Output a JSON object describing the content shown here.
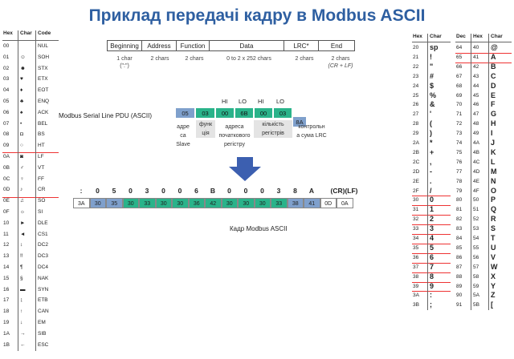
{
  "title": "Приклад передачі кадру в Modbus ASCII",
  "frame_structure": {
    "headers": [
      "Beginning",
      "Address",
      "Function",
      "Data",
      "LRC*",
      "End"
    ],
    "sizes": [
      {
        "l1": "1 char",
        "l2": "(\":\")"
      },
      {
        "l1": "2 chars",
        "l2": ""
      },
      {
        "l1": "2 chars",
        "l2": ""
      },
      {
        "l1": "0 to 2 x 252 chars",
        "l2": ""
      },
      {
        "l1": "2 chars",
        "l2": ""
      },
      {
        "l1": "2 chars",
        "l2": "(CR + LF)"
      }
    ]
  },
  "pdu": {
    "label": "Modbus Serial Line PDU (ASCII)",
    "bytes": [
      "05",
      "03",
      "00",
      "6B",
      "00",
      "03",
      "8A"
    ],
    "hilo": [
      "HI",
      "LO",
      "HI",
      "LO"
    ],
    "descriptions": [
      "адре\nса\nSlave",
      "функ\nція",
      "адреса\nпочаткового\nрегістру",
      "кількість\nрегістрів",
      "контрольн\nа сума LRC"
    ]
  },
  "ascii_frame": {
    "chars": [
      ":",
      "0",
      "5",
      "0",
      "3",
      "0",
      "0",
      "6",
      "B",
      "0",
      "0",
      "0",
      "3",
      "8",
      "A",
      "(CR)(LF)"
    ],
    "hex": [
      "3A",
      "30",
      "35",
      "30",
      "33",
      "30",
      "30",
      "36",
      "42",
      "30",
      "30",
      "30",
      "33",
      "38",
      "41",
      "0D",
      "0A"
    ],
    "caption": "Кадр Modbus ASCII"
  },
  "table_left": {
    "headers": [
      "Hex",
      "Char",
      "Code"
    ],
    "rows": [
      [
        "00",
        "",
        "NUL"
      ],
      [
        "01",
        "☺",
        "SOH"
      ],
      [
        "02",
        "☻",
        "STX"
      ],
      [
        "03",
        "♥",
        "ETX"
      ],
      [
        "04",
        "♦",
        "EOT"
      ],
      [
        "05",
        "♣",
        "ENQ"
      ],
      [
        "06",
        "♠",
        "ACK"
      ],
      [
        "07",
        "•",
        "BEL"
      ],
      [
        "08",
        "◘",
        "BS"
      ],
      [
        "09",
        "○",
        "HT"
      ],
      [
        "0A",
        "◙",
        "LF"
      ],
      [
        "0B",
        "♂",
        "VT"
      ],
      [
        "0C",
        "♀",
        "FF"
      ],
      [
        "0D",
        "♪",
        "CR"
      ],
      [
        "0E",
        "♫",
        "SO"
      ],
      [
        "0F",
        "☼",
        "SI"
      ],
      [
        "10",
        "►",
        "DLE"
      ],
      [
        "11",
        "◄",
        "CS1"
      ],
      [
        "12",
        "↕",
        "DC2"
      ],
      [
        "13",
        "‼",
        "DC3"
      ],
      [
        "14",
        "¶",
        "DC4"
      ],
      [
        "15",
        "§",
        "NAK"
      ],
      [
        "16",
        "▬",
        "SYN"
      ],
      [
        "17",
        "↨",
        "ETB"
      ],
      [
        "18",
        "↑",
        "CAN"
      ],
      [
        "19",
        "↓",
        "EM"
      ],
      [
        "1A",
        "→",
        "SIB"
      ],
      [
        "1B",
        "←",
        "ESC"
      ]
    ]
  },
  "table_mid": {
    "headers": [
      "Hex",
      "Char"
    ],
    "rows": [
      [
        "20",
        "sp"
      ],
      [
        "21",
        "!"
      ],
      [
        "22",
        "\""
      ],
      [
        "23",
        "#"
      ],
      [
        "24",
        "$"
      ],
      [
        "25",
        "%"
      ],
      [
        "26",
        "&"
      ],
      [
        "27",
        "'"
      ],
      [
        "28",
        "("
      ],
      [
        "29",
        ")"
      ],
      [
        "2A",
        "*"
      ],
      [
        "2B",
        "+"
      ],
      [
        "2C",
        ","
      ],
      [
        "2D",
        "-"
      ],
      [
        "2E",
        "."
      ],
      [
        "2F",
        "/"
      ],
      [
        "30",
        "0"
      ],
      [
        "31",
        "1"
      ],
      [
        "32",
        "2"
      ],
      [
        "33",
        "3"
      ],
      [
        "34",
        "4"
      ],
      [
        "35",
        "5"
      ],
      [
        "36",
        "6"
      ],
      [
        "37",
        "7"
      ],
      [
        "38",
        "8"
      ],
      [
        "39",
        "9"
      ],
      [
        "3A",
        ":"
      ],
      [
        "3B",
        ";"
      ]
    ]
  },
  "table_right": {
    "headers": [
      "Dec",
      "Hex",
      "Char"
    ],
    "rows": [
      [
        "64",
        "40",
        "@"
      ],
      [
        "65",
        "41",
        "A"
      ],
      [
        "66",
        "42",
        "B"
      ],
      [
        "67",
        "43",
        "C"
      ],
      [
        "68",
        "44",
        "D"
      ],
      [
        "69",
        "45",
        "E"
      ],
      [
        "70",
        "46",
        "F"
      ],
      [
        "71",
        "47",
        "G"
      ],
      [
        "72",
        "48",
        "H"
      ],
      [
        "73",
        "49",
        "I"
      ],
      [
        "74",
        "4A",
        "J"
      ],
      [
        "75",
        "4B",
        "K"
      ],
      [
        "76",
        "4C",
        "L"
      ],
      [
        "77",
        "4D",
        "M"
      ],
      [
        "78",
        "4E",
        "N"
      ],
      [
        "79",
        "4F",
        "O"
      ],
      [
        "80",
        "50",
        "P"
      ],
      [
        "81",
        "51",
        "Q"
      ],
      [
        "82",
        "52",
        "R"
      ],
      [
        "83",
        "53",
        "S"
      ],
      [
        "84",
        "54",
        "T"
      ],
      [
        "85",
        "55",
        "U"
      ],
      [
        "86",
        "56",
        "V"
      ],
      [
        "87",
        "57",
        "W"
      ],
      [
        "88",
        "58",
        "X"
      ],
      [
        "89",
        "59",
        "Y"
      ],
      [
        "90",
        "5A",
        "Z"
      ],
      [
        "91",
        "5B",
        "["
      ]
    ]
  },
  "colors": {
    "title": "#2e5fa1",
    "blue_cell": "#7fa0cc",
    "green_cell": "#2ab38a",
    "arrow": "#3c5fb0",
    "highlight": "#e33333"
  }
}
